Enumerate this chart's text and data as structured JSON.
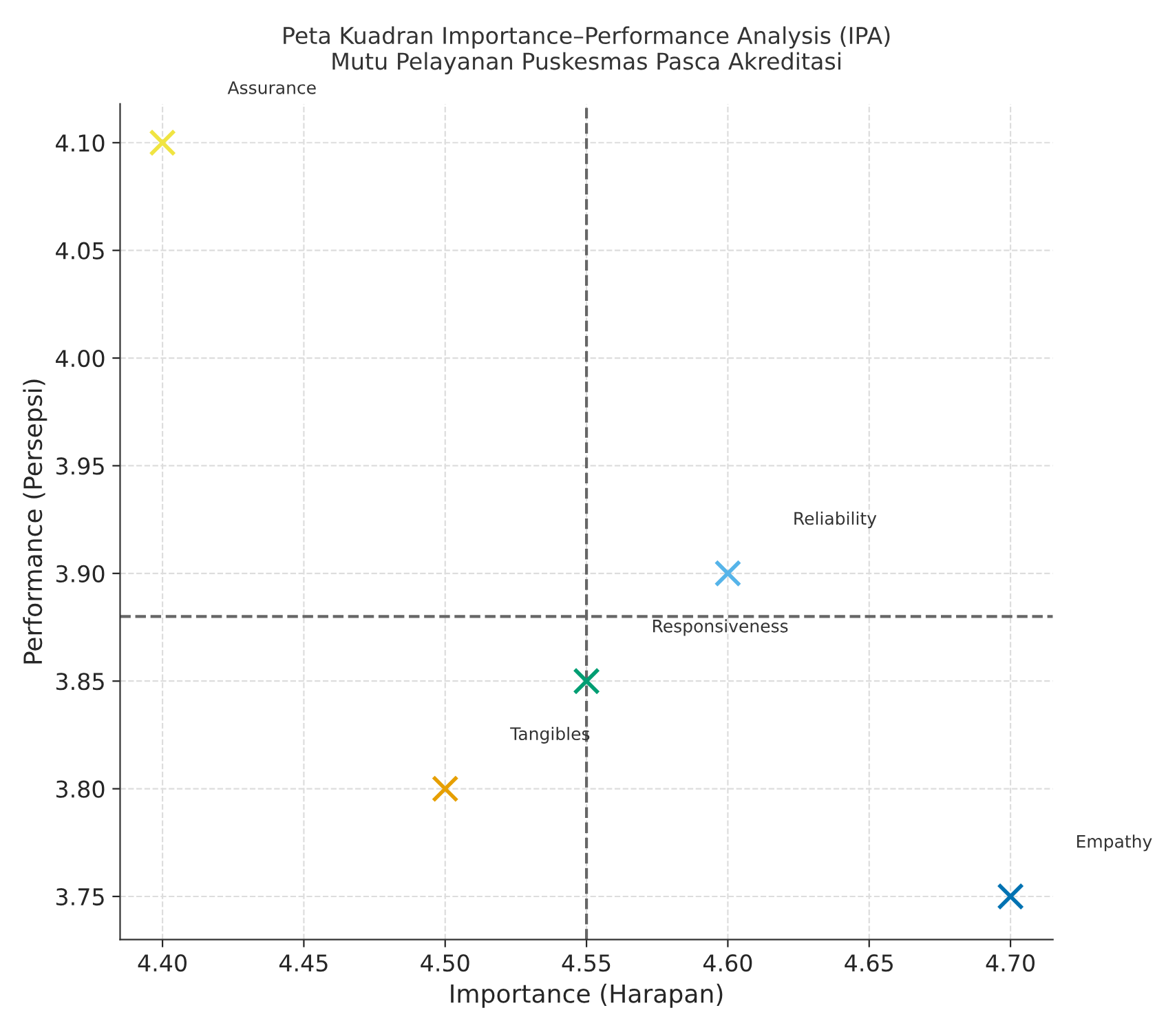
{
  "chart_data": {
    "type": "scatter",
    "title": "Peta Kuadran Importance–Performance Analysis (IPA)\nMutu Pelayanan Puskesmas Pasca Akreditasi",
    "xlabel": "Importance (Harapan)",
    "ylabel": "Performance (Persepsi)",
    "series": [
      {
        "name": "Assurance",
        "color": "#f0e442",
        "x": [
          4.4
        ],
        "values": [
          4.1
        ]
      },
      {
        "name": "Reliability",
        "color": "#56b4e9",
        "x": [
          4.6
        ],
        "values": [
          3.9
        ]
      },
      {
        "name": "Responsiveness",
        "color": "#009e73",
        "x": [
          4.55
        ],
        "values": [
          3.85
        ]
      },
      {
        "name": "Tangibles",
        "color": "#e69f00",
        "x": [
          4.5
        ],
        "values": [
          3.8
        ]
      },
      {
        "name": "Empathy",
        "color": "#0072b2",
        "x": [
          4.7
        ],
        "values": [
          3.75
        ]
      }
    ],
    "xlim": [
      4.385,
      4.715
    ],
    "ylim": [
      3.73,
      4.118
    ],
    "xticks": [
      {
        "value": 4.4,
        "label": "4.40"
      },
      {
        "value": 4.45,
        "label": "4.45"
      },
      {
        "value": 4.5,
        "label": "4.50"
      },
      {
        "value": 4.55,
        "label": "4.55"
      },
      {
        "value": 4.6,
        "label": "4.60"
      },
      {
        "value": 4.65,
        "label": "4.65"
      },
      {
        "value": 4.7,
        "label": "4.70"
      }
    ],
    "yticks": [
      {
        "value": 3.75,
        "label": "3.75"
      },
      {
        "value": 3.8,
        "label": "3.80"
      },
      {
        "value": 3.85,
        "label": "3.85"
      },
      {
        "value": 3.9,
        "label": "3.90"
      },
      {
        "value": 3.95,
        "label": "3.95"
      },
      {
        "value": 4.0,
        "label": "4.00"
      },
      {
        "value": 4.05,
        "label": "4.05"
      },
      {
        "value": 4.1,
        "label": "4.10"
      }
    ],
    "ref_lines": [
      {
        "axis": "x",
        "value": 4.55,
        "color": "#666666",
        "line_style": "dashed"
      },
      {
        "axis": "y",
        "value": 3.88,
        "color": "#666666",
        "line_style": "dashed"
      }
    ],
    "grid": true,
    "legend": false,
    "marker": "cross"
  }
}
